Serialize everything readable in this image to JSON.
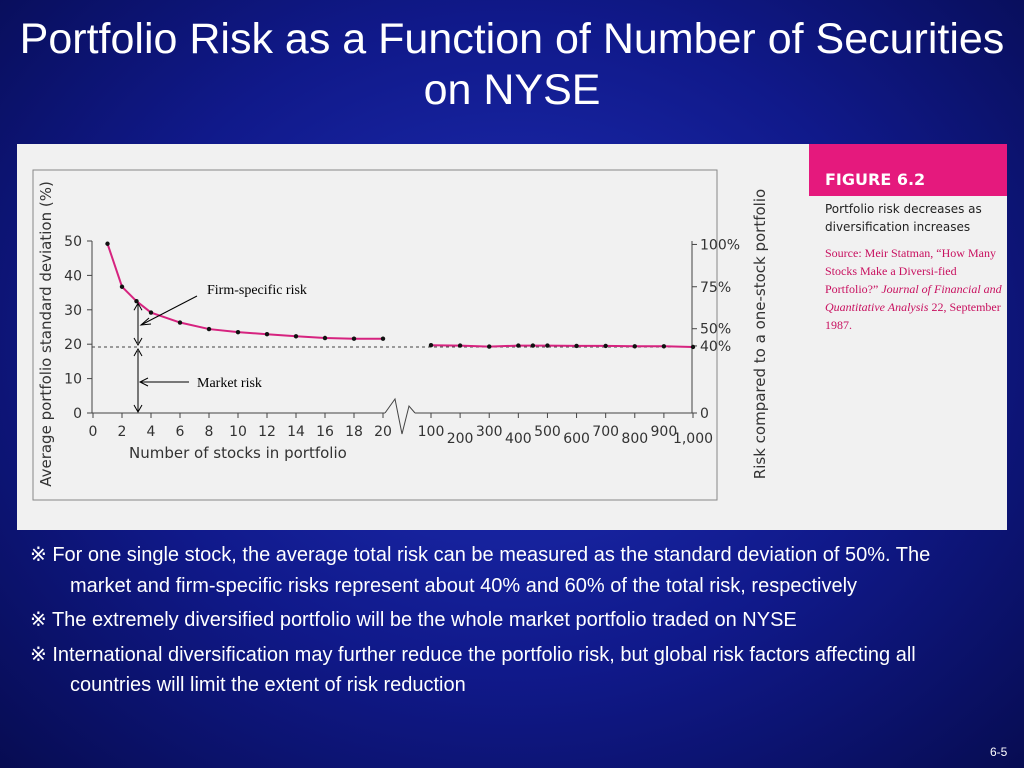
{
  "slide": {
    "title": "Portfolio Risk as a Function of Number of Securities on NYSE",
    "page_number": "6-5"
  },
  "figure": {
    "tag": "FIGURE 6.2",
    "caption": "Portfolio risk decreases as diversification increases",
    "source_prefix": "Source: Meir Statman, “How Many Stocks Make a Diversi-fied Portfolio?” ",
    "source_journal": "Journal of Financial and Quantitative Analysis",
    "source_suffix": " 22, September 1987."
  },
  "chart_data": {
    "type": "line",
    "xlabel": "Number of stocks in portfolio",
    "ylabel": "Average portfolio standard deviation (%)",
    "ylabel_right": "Risk compared to a one-stock portfolio",
    "ylim": [
      0,
      50
    ],
    "yticks_left": [
      "0",
      "10",
      "20",
      "30",
      "40",
      "50"
    ],
    "yticks_right": [
      {
        "label": "0",
        "y": 0
      },
      {
        "label": "40%",
        "y": 19.5
      },
      {
        "label": "50%",
        "y": 24.5
      },
      {
        "label": "75%",
        "y": 36.7
      },
      {
        "label": "100%",
        "y": 49
      }
    ],
    "xticks_left_segment": [
      "0",
      "2",
      "4",
      "6",
      "8",
      "10",
      "12",
      "14",
      "16",
      "18",
      "20"
    ],
    "xticks_right_segment": [
      "100",
      "200",
      "300",
      "400",
      "500",
      "600",
      "700",
      "800",
      "900",
      "1,000"
    ],
    "line_color": "#d6237f",
    "series": [
      {
        "x": [
          1,
          2,
          3,
          4,
          6,
          8,
          10,
          12,
          14,
          16,
          18,
          20
        ],
        "values": [
          49.2,
          36.7,
          32.5,
          29.2,
          26.3,
          24.4,
          23.5,
          22.9,
          22.3,
          21.8,
          21.6,
          21.6
        ]
      },
      {
        "x": [
          100,
          200,
          300,
          400,
          450,
          500,
          600,
          700,
          800,
          900,
          1000
        ],
        "values": [
          19.7,
          19.6,
          19.3,
          19.6,
          19.6,
          19.6,
          19.5,
          19.5,
          19.4,
          19.4,
          19.2
        ]
      }
    ],
    "market_risk_level": 19.2,
    "annotations": [
      "Firm-specific risk",
      "Market risk"
    ],
    "grid": false,
    "legend": "none"
  },
  "bullets": [
    "※ For one single stock, the average total risk can be measured as the standard deviation of 50%. The market and firm-specific risks represent about 40% and 60% of the total risk, respectively",
    "※ The extremely diversified portfolio will be the whole market portfolio traded on NYSE",
    "※ International diversification may further reduce the portfolio risk, but global risk factors affecting all countries will limit the extent of risk reduction"
  ]
}
